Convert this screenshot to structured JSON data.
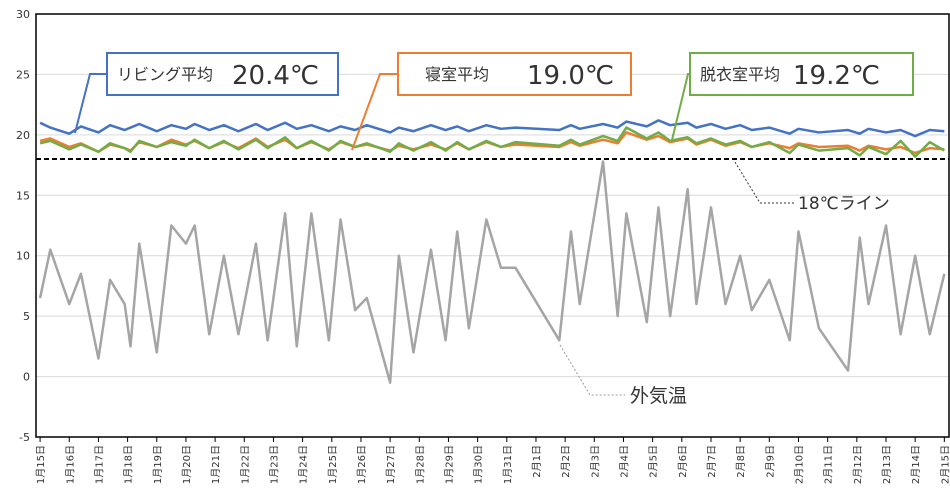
{
  "chart_data": {
    "type": "line",
    "x": [
      0,
      0.35,
      1,
      1.4,
      2,
      2.4,
      2.9,
      3.1,
      3.4,
      4,
      4.5,
      5,
      5.3,
      5.8,
      6.3,
      6.8,
      7.4,
      7.8,
      8.4,
      8.8,
      9.3,
      9.9,
      10.3,
      10.8,
      11.2,
      12,
      12.3,
      12.8,
      13.4,
      13.9,
      14.3,
      14.7,
      15.3,
      15.8,
      16.3,
      17.8,
      18.2,
      18.5,
      19.3,
      19.8,
      20.1,
      20.8,
      21.2,
      21.6,
      22.2,
      22.5,
      23,
      23.5,
      24,
      24.4,
      25,
      25.7,
      26,
      26.7,
      27.7,
      28.1,
      28.4,
      29,
      29.5,
      30,
      30.5,
      31
    ],
    "series": [
      {
        "color": "#4472c4",
        "values": [
          21,
          20.6,
          20.1,
          20.7,
          20.2,
          20.8,
          20.4,
          20.6,
          20.9,
          20.3,
          20.8,
          20.5,
          20.9,
          20.4,
          20.8,
          20.3,
          20.9,
          20.4,
          21,
          20.5,
          20.8,
          20.3,
          20.7,
          20.4,
          20.8,
          20.2,
          20.6,
          20.3,
          20.8,
          20.4,
          20.7,
          20.3,
          20.8,
          20.5,
          20.6,
          20.4,
          20.8,
          20.5,
          20.9,
          20.6,
          21.1,
          20.7,
          21.2,
          20.8,
          21,
          20.6,
          20.9,
          20.5,
          20.8,
          20.4,
          20.6,
          20.1,
          20.5,
          20.2,
          20.4,
          20.1,
          20.5,
          20.2,
          20.4,
          19.9,
          20.4,
          20.3
        ]
      },
      {
        "color": "#ed7d31",
        "values": [
          19.5,
          19.7,
          19,
          19.3,
          18.6,
          19.2,
          18.9,
          18.7,
          19.4,
          19,
          19.6,
          19.2,
          19.5,
          18.9,
          19.4,
          18.9,
          19.7,
          19,
          19.6,
          18.9,
          19.4,
          18.8,
          19.4,
          19,
          19.2,
          18.7,
          19.1,
          18.8,
          19.2,
          18.8,
          19.3,
          18.8,
          19.4,
          19,
          19.2,
          19,
          19.4,
          19.1,
          19.6,
          19.3,
          20.2,
          19.6,
          19.9,
          19.4,
          19.7,
          19.2,
          19.6,
          19.1,
          19.4,
          19,
          19.3,
          18.9,
          19.3,
          19,
          19.1,
          18.7,
          19.1,
          18.8,
          19,
          18.5,
          18.9,
          18.8
        ]
      },
      {
        "color": "#70ad47",
        "values": [
          19.3,
          19.5,
          18.8,
          19.2,
          18.6,
          19.3,
          18.9,
          18.6,
          19.5,
          19,
          19.4,
          19.1,
          19.6,
          18.9,
          19.5,
          18.8,
          19.6,
          18.9,
          19.8,
          18.9,
          19.5,
          18.7,
          19.5,
          19,
          19.3,
          18.6,
          19.3,
          18.7,
          19.4,
          18.7,
          19.4,
          18.8,
          19.5,
          19,
          19.4,
          19.1,
          19.6,
          19.2,
          19.9,
          19.5,
          20.6,
          19.7,
          20.2,
          19.5,
          19.8,
          19.3,
          19.7,
          19.2,
          19.5,
          19,
          19.4,
          18.5,
          19.2,
          18.7,
          18.9,
          18.3,
          19,
          18.4,
          19.5,
          18.2,
          19.4,
          18.7
        ]
      },
      {
        "color": "#a5a5a5",
        "values": [
          6.5,
          10.5,
          6,
          8.5,
          1.5,
          8,
          6,
          2.5,
          11,
          2,
          12.5,
          11,
          12.5,
          3.5,
          10,
          3.5,
          11,
          3,
          13.5,
          2.5,
          13.5,
          3,
          13,
          5.5,
          6.5,
          -0.5,
          10,
          2,
          10.5,
          3,
          12,
          4,
          13,
          9,
          9,
          3,
          12,
          6,
          17.8,
          5,
          13.5,
          4.5,
          14,
          5,
          15.5,
          6,
          14,
          6,
          10,
          5.5,
          8,
          3,
          12,
          4,
          0.5,
          11.5,
          6,
          12.5,
          3.5,
          10,
          3.5,
          8.5
        ]
      }
    ],
    "xlim": [
      -0.14,
      31.16
    ],
    "xticks": [
      {
        "value": 0,
        "label": "1月15日"
      },
      {
        "value": 1,
        "label": "1月16日"
      },
      {
        "value": 2,
        "label": "1月17日"
      },
      {
        "value": 3,
        "label": "1月18日"
      },
      {
        "value": 4,
        "label": "1月19日"
      },
      {
        "value": 5,
        "label": "1月20日"
      },
      {
        "value": 6,
        "label": "1月21日"
      },
      {
        "value": 7,
        "label": "1月22日"
      },
      {
        "value": 8,
        "label": "1月23日"
      },
      {
        "value": 9,
        "label": "1月24日"
      },
      {
        "value": 10,
        "label": "1月25日"
      },
      {
        "value": 11,
        "label": "1月26日"
      },
      {
        "value": 12,
        "label": "1月27日"
      },
      {
        "value": 13,
        "label": "1月28日"
      },
      {
        "value": 14,
        "label": "1月29日"
      },
      {
        "value": 15,
        "label": "1月30日"
      },
      {
        "value": 16,
        "label": "1月31日"
      },
      {
        "value": 17,
        "label": "2月1日"
      },
      {
        "value": 18,
        "label": "2月2日"
      },
      {
        "value": 19,
        "label": "2月3日"
      },
      {
        "value": 20,
        "label": "2月4日"
      },
      {
        "value": 21,
        "label": "2月5日"
      },
      {
        "value": 22,
        "label": "2月6日"
      },
      {
        "value": 23,
        "label": "2月7日"
      },
      {
        "value": 24,
        "label": "2月8日"
      },
      {
        "value": 25,
        "label": "2月9日"
      },
      {
        "value": 26,
        "label": "2月10日"
      },
      {
        "value": 27,
        "label": "2月11日"
      },
      {
        "value": 28,
        "label": "2月12日"
      },
      {
        "value": 29,
        "label": "2月13日"
      },
      {
        "value": 30,
        "label": "2月14日"
      },
      {
        "value": 31,
        "label": "2月15日"
      }
    ],
    "ylim": [
      -5,
      30
    ],
    "yticks": [
      -5,
      0,
      5,
      10,
      15,
      20,
      25,
      30
    ],
    "grid": true,
    "reference_line": {
      "value": 18,
      "label": "18℃ライン"
    },
    "callouts": [
      {
        "text": "リビング平均",
        "value_text": "20.4℃"
      },
      {
        "text": "寝室平均",
        "value_text": "19.0℃"
      },
      {
        "text": "脱衣室平均",
        "value_text": "19.2℃"
      }
    ],
    "outdoor_label": "外気温"
  }
}
